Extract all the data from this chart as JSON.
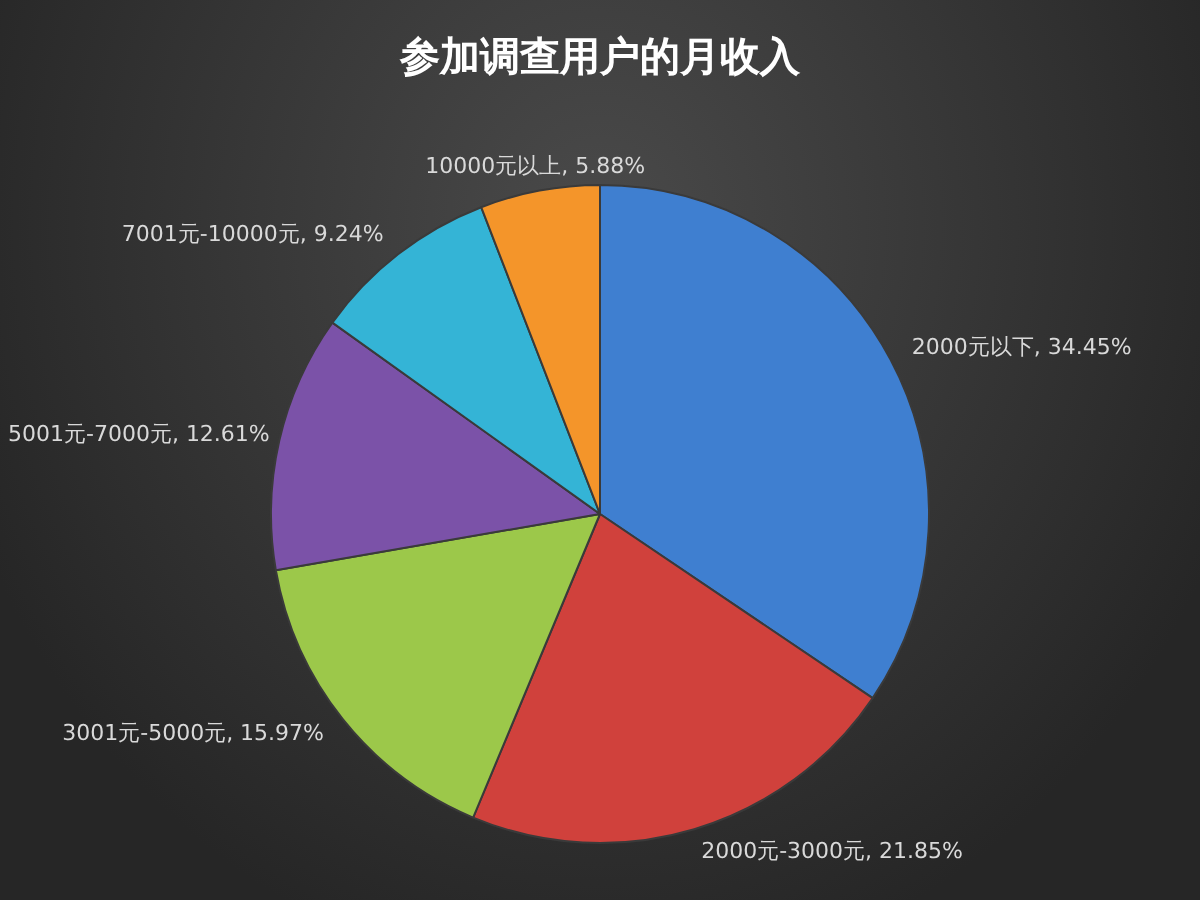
{
  "chart_data": {
    "type": "pie",
    "title": "参加调查用户的月收入",
    "categories": [
      "2000元以下",
      "2000元-3000元",
      "3001元-5000元",
      "5001元-7000元",
      "7001元-10000元",
      "10000元以上"
    ],
    "values": [
      34.45,
      21.85,
      15.97,
      12.61,
      9.24,
      5.88
    ],
    "value_labels": [
      "34.45%",
      "21.85%",
      "15.97%",
      "12.61%",
      "9.24%",
      "5.88%"
    ],
    "colors": [
      "#3f7fd0",
      "#d0413c",
      "#9cc84a",
      "#7b52a8",
      "#34b4d6",
      "#f4952a"
    ],
    "legend": false
  }
}
